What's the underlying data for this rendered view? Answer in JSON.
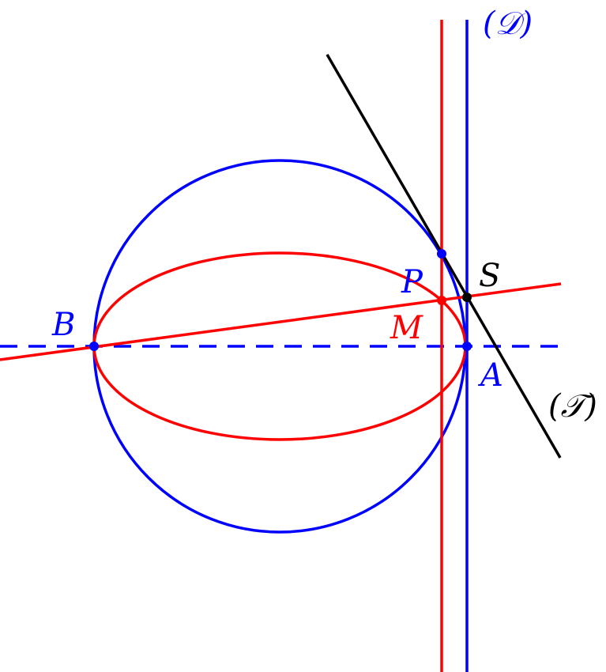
{
  "labels": {
    "B": "B",
    "A": "A",
    "P": "P",
    "M": "M",
    "S": "S",
    "D": "(𝒟)",
    "T": "(𝒯)"
  },
  "colors": {
    "circle": "#0000ff",
    "ellipse": "#ff0000",
    "tangent": "#000000",
    "background": "#ffffff"
  }
}
